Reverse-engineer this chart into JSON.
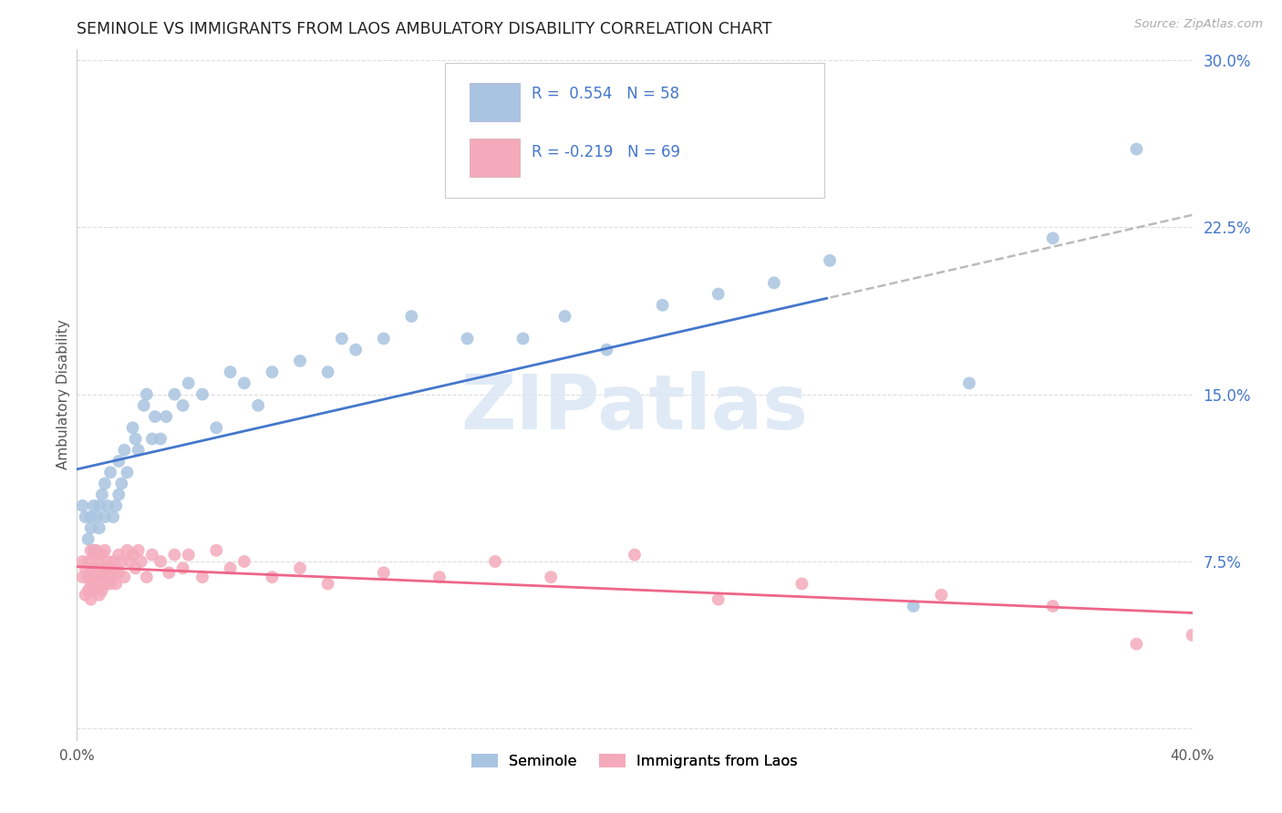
{
  "title": "SEMINOLE VS IMMIGRANTS FROM LAOS AMBULATORY DISABILITY CORRELATION CHART",
  "source": "Source: ZipAtlas.com",
  "ylabel": "Ambulatory Disability",
  "xlim": [
    0.0,
    0.4
  ],
  "ylim": [
    -0.005,
    0.305
  ],
  "yticks": [
    0.075,
    0.15,
    0.225,
    0.3
  ],
  "ytick_labels": [
    "7.5%",
    "15.0%",
    "22.5%",
    "30.0%"
  ],
  "blue_color": "#A8C4E0",
  "pink_color": "#F4AABB",
  "trend_blue": "#4477CC",
  "trend_pink": "#EE6688",
  "dash_color": "#BBBBBB",
  "background": "#FFFFFF",
  "grid_color": "#DDDDDD",
  "seminole_x": [
    0.002,
    0.003,
    0.004,
    0.005,
    0.005,
    0.006,
    0.006,
    0.007,
    0.008,
    0.008,
    0.009,
    0.01,
    0.01,
    0.011,
    0.012,
    0.013,
    0.014,
    0.015,
    0.015,
    0.016,
    0.017,
    0.018,
    0.02,
    0.021,
    0.022,
    0.024,
    0.025,
    0.027,
    0.028,
    0.03,
    0.032,
    0.035,
    0.038,
    0.04,
    0.045,
    0.05,
    0.055,
    0.06,
    0.065,
    0.07,
    0.08,
    0.09,
    0.095,
    0.1,
    0.11,
    0.12,
    0.14,
    0.16,
    0.175,
    0.19,
    0.21,
    0.23,
    0.25,
    0.27,
    0.3,
    0.32,
    0.35,
    0.38
  ],
  "seminole_y": [
    0.1,
    0.095,
    0.085,
    0.09,
    0.095,
    0.1,
    0.08,
    0.095,
    0.09,
    0.1,
    0.105,
    0.095,
    0.11,
    0.1,
    0.115,
    0.095,
    0.1,
    0.12,
    0.105,
    0.11,
    0.125,
    0.115,
    0.135,
    0.13,
    0.125,
    0.145,
    0.15,
    0.13,
    0.14,
    0.13,
    0.14,
    0.15,
    0.145,
    0.155,
    0.15,
    0.135,
    0.16,
    0.155,
    0.145,
    0.16,
    0.165,
    0.16,
    0.175,
    0.17,
    0.175,
    0.185,
    0.175,
    0.175,
    0.185,
    0.17,
    0.19,
    0.195,
    0.2,
    0.21,
    0.055,
    0.155,
    0.22,
    0.26
  ],
  "laos_x": [
    0.002,
    0.002,
    0.003,
    0.003,
    0.004,
    0.004,
    0.004,
    0.005,
    0.005,
    0.005,
    0.005,
    0.006,
    0.006,
    0.006,
    0.007,
    0.007,
    0.007,
    0.008,
    0.008,
    0.008,
    0.009,
    0.009,
    0.009,
    0.01,
    0.01,
    0.01,
    0.011,
    0.011,
    0.012,
    0.012,
    0.013,
    0.013,
    0.014,
    0.014,
    0.015,
    0.015,
    0.016,
    0.017,
    0.018,
    0.019,
    0.02,
    0.021,
    0.022,
    0.023,
    0.025,
    0.027,
    0.03,
    0.033,
    0.035,
    0.038,
    0.04,
    0.045,
    0.05,
    0.055,
    0.06,
    0.07,
    0.08,
    0.09,
    0.11,
    0.13,
    0.15,
    0.17,
    0.2,
    0.23,
    0.26,
    0.31,
    0.35,
    0.38,
    0.4
  ],
  "laos_y": [
    0.068,
    0.075,
    0.06,
    0.072,
    0.062,
    0.068,
    0.075,
    0.058,
    0.065,
    0.072,
    0.08,
    0.062,
    0.068,
    0.078,
    0.065,
    0.072,
    0.08,
    0.06,
    0.068,
    0.075,
    0.062,
    0.07,
    0.078,
    0.065,
    0.072,
    0.08,
    0.068,
    0.075,
    0.065,
    0.072,
    0.068,
    0.075,
    0.065,
    0.072,
    0.07,
    0.078,
    0.075,
    0.068,
    0.08,
    0.075,
    0.078,
    0.072,
    0.08,
    0.075,
    0.068,
    0.078,
    0.075,
    0.07,
    0.078,
    0.072,
    0.078,
    0.068,
    0.08,
    0.072,
    0.075,
    0.068,
    0.072,
    0.065,
    0.07,
    0.068,
    0.075,
    0.068,
    0.078,
    0.058,
    0.065,
    0.06,
    0.055,
    0.038,
    0.042
  ]
}
